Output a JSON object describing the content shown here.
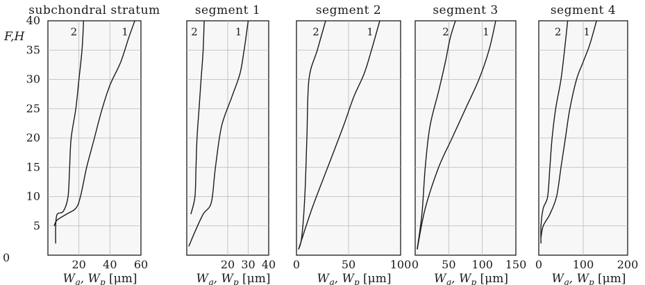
{
  "figure": {
    "ylabel": "F,H",
    "yticks": [
      "5",
      "10",
      "15",
      "20",
      "25",
      "30",
      "35",
      "40"
    ],
    "y_origin_label": "0"
  },
  "chart_data": [
    {
      "type": "line",
      "title": "subchondral stratum",
      "xlabel": "W_g, W_p [μm]",
      "xlim": [
        0,
        60
      ],
      "xticks": [
        "20",
        "40",
        "60"
      ],
      "ylim": [
        0,
        40
      ],
      "grid": true,
      "series": [
        {
          "name": "2",
          "points": [
            [
              5,
              2
            ],
            [
              5,
              5
            ],
            [
              6,
              7
            ],
            [
              10,
              7.5
            ],
            [
              13,
              10
            ],
            [
              14,
              15
            ],
            [
              15,
              20
            ],
            [
              18,
              25
            ],
            [
              20,
              30
            ],
            [
              22,
              35
            ],
            [
              23,
              40
            ]
          ]
        },
        {
          "name": "1",
          "points": [
            [
              4,
              5
            ],
            [
              6,
              6
            ],
            [
              12,
              7
            ],
            [
              18,
              8
            ],
            [
              21,
              10
            ],
            [
              25,
              15
            ],
            [
              30,
              20
            ],
            [
              35,
              25
            ],
            [
              40,
              29
            ],
            [
              47,
              33
            ],
            [
              52,
              37
            ],
            [
              56,
              40
            ]
          ]
        }
      ]
    },
    {
      "type": "line",
      "title": "segment 1",
      "xlabel": "W_g, W_p [μm]",
      "xlim": [
        0,
        40
      ],
      "xticks": [
        "20",
        "30",
        "40"
      ],
      "ylim": [
        0,
        40
      ],
      "grid": true,
      "series": [
        {
          "name": "2",
          "points": [
            [
              2,
              7
            ],
            [
              4,
              10
            ],
            [
              4.5,
              15
            ],
            [
              5,
              20
            ],
            [
              6,
              25
            ],
            [
              7,
              30
            ],
            [
              8,
              35
            ],
            [
              8.5,
              40
            ]
          ]
        },
        {
          "name": "1",
          "points": [
            [
              1,
              1.5
            ],
            [
              4,
              4
            ],
            [
              8,
              7
            ],
            [
              12,
              9
            ],
            [
              14,
              15
            ],
            [
              17,
              22
            ],
            [
              22,
              27
            ],
            [
              26,
              31
            ],
            [
              28,
              35
            ],
            [
              30,
              40
            ]
          ]
        }
      ]
    },
    {
      "type": "line",
      "title": "segment 2",
      "xlabel": "W_g, W_p [μm]",
      "xlim": [
        0,
        100
      ],
      "xticks": [
        "0",
        "50",
        "100"
      ],
      "ylim": [
        0,
        40
      ],
      "grid": true,
      "series": [
        {
          "name": "2",
          "points": [
            [
              2,
              1
            ],
            [
              5,
              3
            ],
            [
              8,
              10
            ],
            [
              10,
              20
            ],
            [
              12,
              30
            ],
            [
              20,
              35
            ],
            [
              28,
              40
            ]
          ]
        },
        {
          "name": "1",
          "points": [
            [
              2,
              1
            ],
            [
              15,
              8
            ],
            [
              30,
              15
            ],
            [
              45,
              22
            ],
            [
              55,
              27
            ],
            [
              65,
              31
            ],
            [
              72,
              35
            ],
            [
              80,
              40
            ]
          ]
        }
      ]
    },
    {
      "type": "line",
      "title": "segment 3",
      "xlabel": "W_g, W_p [μm]",
      "xlim": [
        0,
        150
      ],
      "xticks": [
        "0",
        "50",
        "100",
        "150"
      ],
      "ylim": [
        0,
        40
      ],
      "grid": true,
      "series": [
        {
          "name": "2",
          "points": [
            [
              3,
              1
            ],
            [
              10,
              7
            ],
            [
              15,
              15
            ],
            [
              22,
              22
            ],
            [
              35,
              28
            ],
            [
              45,
              33
            ],
            [
              52,
              37
            ],
            [
              60,
              40
            ]
          ]
        },
        {
          "name": "1",
          "points": [
            [
              3,
              1
            ],
            [
              15,
              8
            ],
            [
              35,
              15
            ],
            [
              55,
              20
            ],
            [
              75,
              25
            ],
            [
              95,
              30
            ],
            [
              110,
              35
            ],
            [
              120,
              40
            ]
          ]
        }
      ]
    },
    {
      "type": "line",
      "title": "segment 4",
      "xlabel": "W_g, W_p [μm]",
      "xlim": [
        0,
        200
      ],
      "xticks": [
        "0",
        "100",
        "200"
      ],
      "ylim": [
        0,
        40
      ],
      "grid": true,
      "series": [
        {
          "name": "2",
          "points": [
            [
              5,
              2
            ],
            [
              5,
              5
            ],
            [
              10,
              8
            ],
            [
              20,
              10
            ],
            [
              25,
              15
            ],
            [
              30,
              20
            ],
            [
              38,
              25
            ],
            [
              50,
              30
            ],
            [
              58,
              35
            ],
            [
              65,
              40
            ]
          ]
        },
        {
          "name": "1",
          "points": [
            [
              5,
              3
            ],
            [
              10,
              5
            ],
            [
              25,
              7
            ],
            [
              40,
              10
            ],
            [
              50,
              15
            ],
            [
              60,
              20
            ],
            [
              70,
              25
            ],
            [
              85,
              30
            ],
            [
              100,
              33
            ],
            [
              115,
              36
            ],
            [
              130,
              40
            ]
          ]
        }
      ]
    }
  ]
}
